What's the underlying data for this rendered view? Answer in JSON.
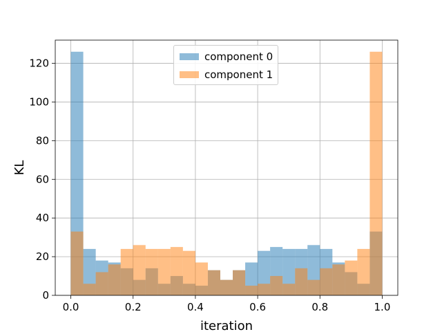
{
  "chart_data": {
    "type": "bar",
    "xlabel": "iteration",
    "ylabel": "KL",
    "xlim": [
      -0.05,
      1.05
    ],
    "ylim": [
      0,
      132
    ],
    "grid": true,
    "legend_position": "top-center",
    "x_ticks": [
      "0.0",
      "0.2",
      "0.4",
      "0.6",
      "0.8",
      "1.0"
    ],
    "x_tick_values": [
      0.0,
      0.2,
      0.4,
      0.6,
      0.8,
      1.0
    ],
    "y_ticks": [
      "0",
      "20",
      "40",
      "60",
      "80",
      "100",
      "120"
    ],
    "y_tick_values": [
      0,
      20,
      40,
      60,
      80,
      100,
      120
    ],
    "bin_edges": [
      0.0,
      0.04,
      0.08,
      0.12,
      0.16,
      0.2,
      0.24,
      0.28,
      0.32,
      0.36,
      0.4,
      0.44,
      0.48,
      0.52,
      0.56,
      0.6,
      0.64,
      0.68,
      0.72,
      0.76,
      0.8,
      0.84,
      0.88,
      0.92,
      0.96,
      1.0
    ],
    "series": [
      {
        "name": "component 0",
        "color": "#1f77b4",
        "values": [
          126,
          24,
          18,
          17,
          14,
          8,
          14,
          6,
          10,
          6,
          5,
          13,
          8,
          13,
          17,
          23,
          25,
          24,
          24,
          26,
          24,
          17,
          12,
          6,
          33
        ]
      },
      {
        "name": "component 1",
        "color": "#ff7f0e",
        "values": [
          33,
          6,
          12,
          16,
          24,
          26,
          24,
          24,
          25,
          23,
          17,
          13,
          8,
          13,
          5,
          6,
          10,
          6,
          14,
          8,
          14,
          16,
          18,
          24,
          126
        ]
      }
    ]
  }
}
